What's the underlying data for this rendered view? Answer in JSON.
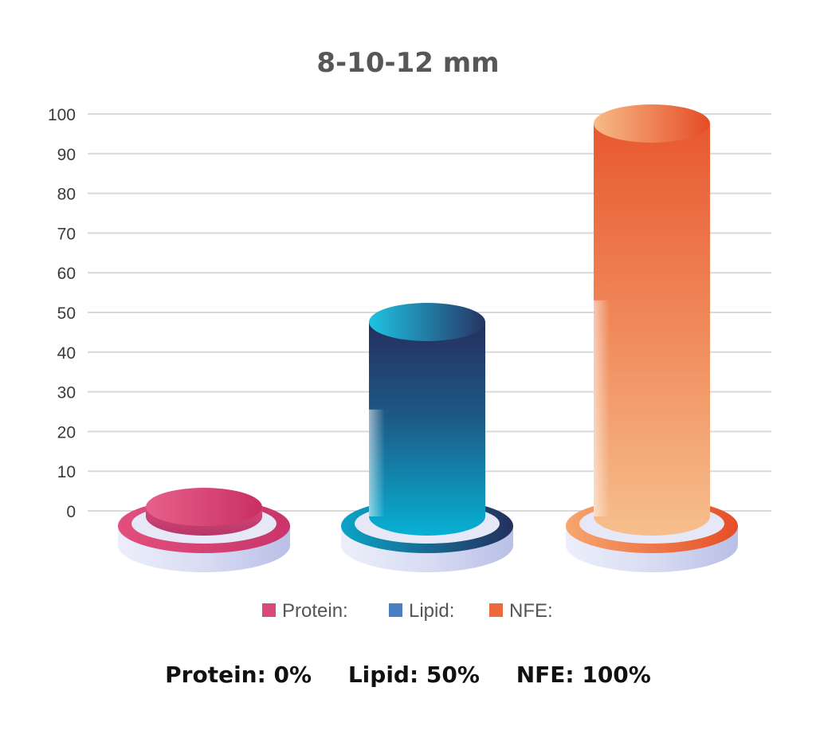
{
  "chart_data": {
    "type": "bar",
    "title": "8-10-12 mm",
    "categories": [
      "Protein:",
      "Lipid:",
      "NFE:"
    ],
    "values": [
      0,
      50,
      100
    ],
    "ylim": [
      0,
      100
    ],
    "yticks": [
      0,
      10,
      20,
      30,
      40,
      50,
      60,
      70,
      80,
      90,
      100
    ],
    "grid": true,
    "legend_position": "bottom",
    "colors": [
      "#d94a7a",
      "#4a7fc1",
      "#ec6a3c"
    ]
  },
  "summary": [
    {
      "label": "Protein:",
      "value": "0%"
    },
    {
      "label": "Lipid:",
      "value": "50%"
    },
    {
      "label": "NFE:",
      "value": "100%"
    }
  ]
}
